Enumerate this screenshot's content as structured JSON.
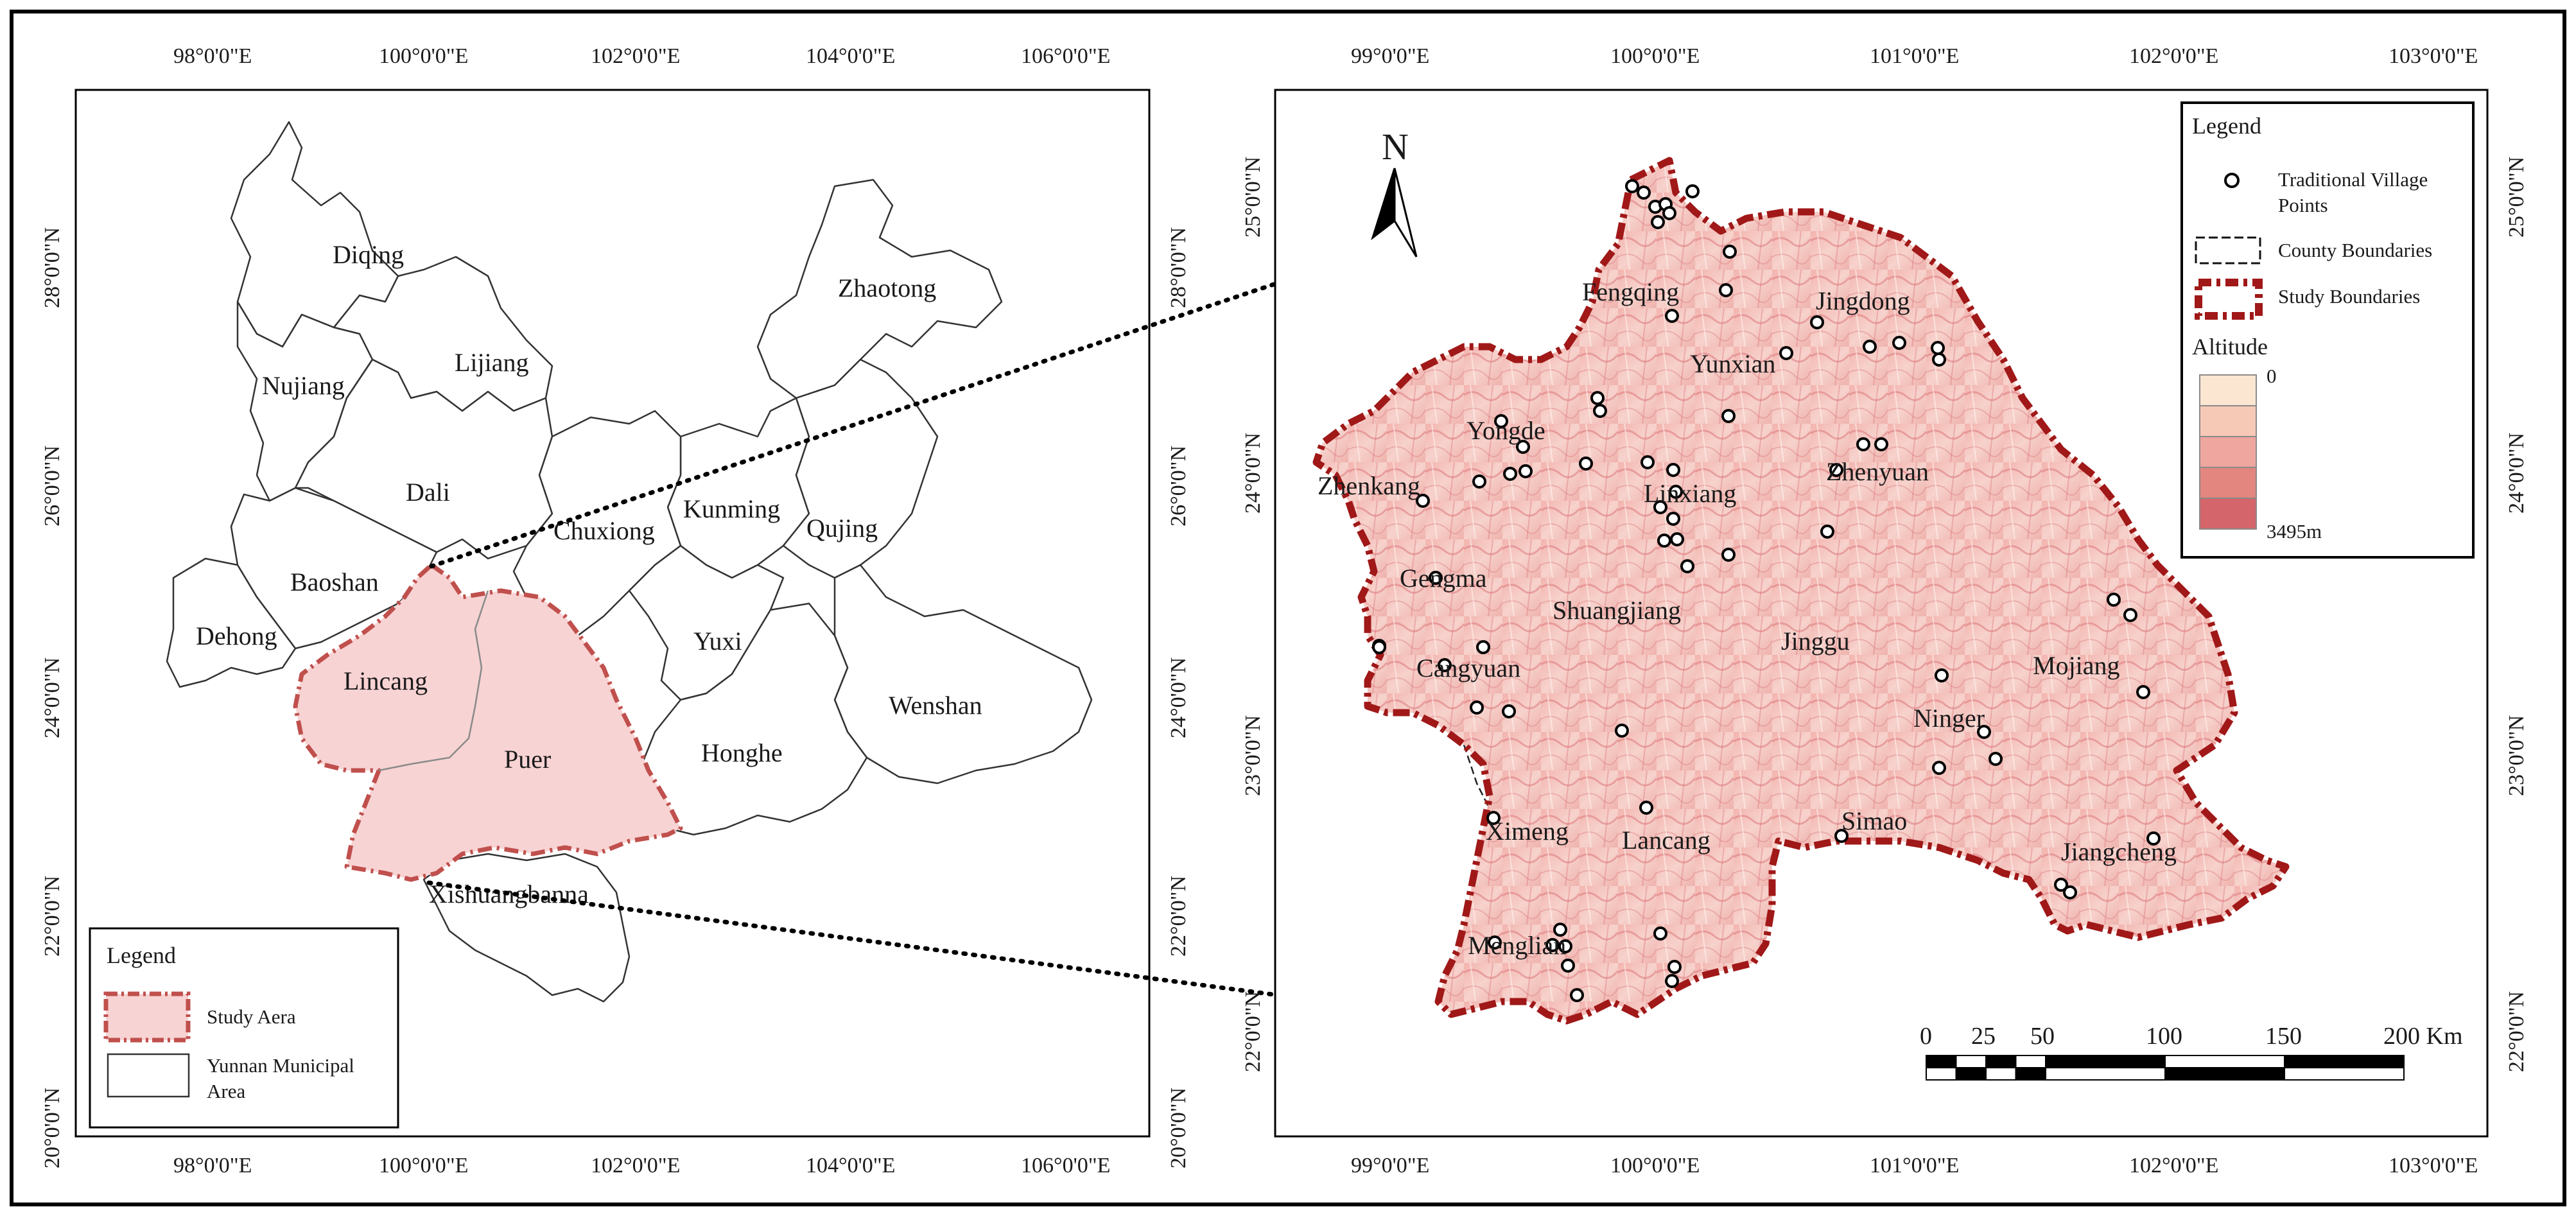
{
  "left_map": {
    "lon_ticks": [
      "98°0'0\"E",
      "100°0'0\"E",
      "102°0'0\"E",
      "104°0'0\"E",
      "106°0'0\"E"
    ],
    "lat_ticks": [
      "28°0'0\"N",
      "26°0'0\"N",
      "24°0'0\"N",
      "22°0'0\"N",
      "20°0'0\"N"
    ],
    "regions": [
      "Diqing",
      "Zhaotong",
      "Lijiang",
      "Nujiang",
      "Dali",
      "Kunming",
      "Qujing",
      "Chuxiong",
      "Baoshan",
      "Dehong",
      "Yuxi",
      "Lincang",
      "Wenshan",
      "Honghe",
      "Puer",
      "Xishuangbanna"
    ],
    "legend": {
      "title": "Legend",
      "items": [
        {
          "label": "Study Aera",
          "color": "#f7d2d2",
          "border": "#c0504d"
        },
        {
          "label": "Yunnan Municipal Area",
          "color": "#ffffff",
          "border": "#333333"
        }
      ]
    }
  },
  "right_map": {
    "lon_ticks": [
      "99°0'0\"E",
      "100°0'0\"E",
      "101°0'0\"E",
      "102°0'0\"E",
      "103°0'0\"E"
    ],
    "lat_ticks": [
      "25°0'0\"N",
      "24°0'0\"N",
      "23°0'0\"N",
      "22°0'0\"N"
    ],
    "counties": [
      "Fengqing",
      "Jingdong",
      "Yunxian",
      "Yongde",
      "Zhenkang",
      "Linxiang",
      "Zhenyuan",
      "Gengma",
      "Shuangjiang",
      "Jinggu",
      "Cangyuan",
      "Mojiang",
      "Ninger",
      "Ximeng",
      "Lancang",
      "Simao",
      "Jiangcheng",
      "Menglian"
    ],
    "north_label": "N",
    "legend": {
      "title": "Legend",
      "items": [
        {
          "label": "Traditional Village Points",
          "icon": "village-point-icon"
        },
        {
          "label": "County Boundaries",
          "icon": "dashed-line-icon"
        },
        {
          "label": "Study Boundaries",
          "icon": "study-boundary-icon"
        }
      ],
      "altitude_title": "Altitude",
      "altitude_min": "0",
      "altitude_max": "3495m",
      "altitude_colors": [
        "#fbe6d2",
        "#f6c9b6",
        "#eea69e",
        "#e2867f",
        "#d4656a"
      ]
    },
    "scale_bar": {
      "labels": [
        "0",
        "25",
        "50",
        "100",
        "150",
        "200 Km"
      ]
    }
  }
}
